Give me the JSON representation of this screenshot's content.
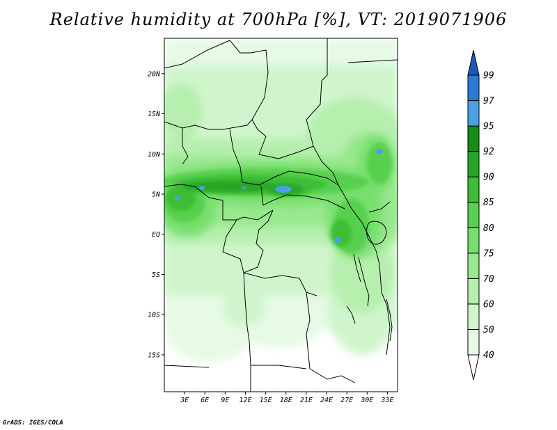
{
  "title": "Relative humidity at 700hPa [%], VT: 2019071906",
  "credit": "GrADS: IGES/COLA",
  "map": {
    "variable": "Relative humidity",
    "level": "700hPa",
    "units": "%",
    "valid_time": "2019071906",
    "lat_range": [
      -19.6,
      24.4
    ],
    "lon_range": [
      0,
      34.5
    ],
    "lat_ticks": [
      {
        "value": 20,
        "label": "20N"
      },
      {
        "value": 15,
        "label": "15N"
      },
      {
        "value": 10,
        "label": "10N"
      },
      {
        "value": 5,
        "label": "5N"
      },
      {
        "value": 0,
        "label": "EQ"
      },
      {
        "value": -5,
        "label": "5S"
      },
      {
        "value": -10,
        "label": "10S"
      },
      {
        "value": -15,
        "label": "15S"
      }
    ],
    "lon_ticks": [
      {
        "value": 3,
        "label": "3E"
      },
      {
        "value": 6,
        "label": "6E"
      },
      {
        "value": 9,
        "label": "9E"
      },
      {
        "value": 12,
        "label": "12E"
      },
      {
        "value": 15,
        "label": "15E"
      },
      {
        "value": 18,
        "label": "18E"
      },
      {
        "value": 21,
        "label": "21E"
      },
      {
        "value": 24,
        "label": "24E"
      },
      {
        "value": 27,
        "label": "27E"
      },
      {
        "value": 30,
        "label": "30E"
      },
      {
        "value": 33,
        "label": "33E"
      }
    ]
  },
  "colorbar": {
    "levels": [
      "40",
      "50",
      "60",
      "70",
      "75",
      "80",
      "85",
      "90",
      "92",
      "95",
      "97",
      "99"
    ],
    "colors": [
      "#ffffff",
      "#e6fae6",
      "#d0f5cc",
      "#b6efae",
      "#98e88e",
      "#78df6e",
      "#58d050",
      "#3dbe36",
      "#26a626",
      "#158c15",
      "#4aa0e6",
      "#2a7ad6",
      "#1a58b8"
    ]
  }
}
